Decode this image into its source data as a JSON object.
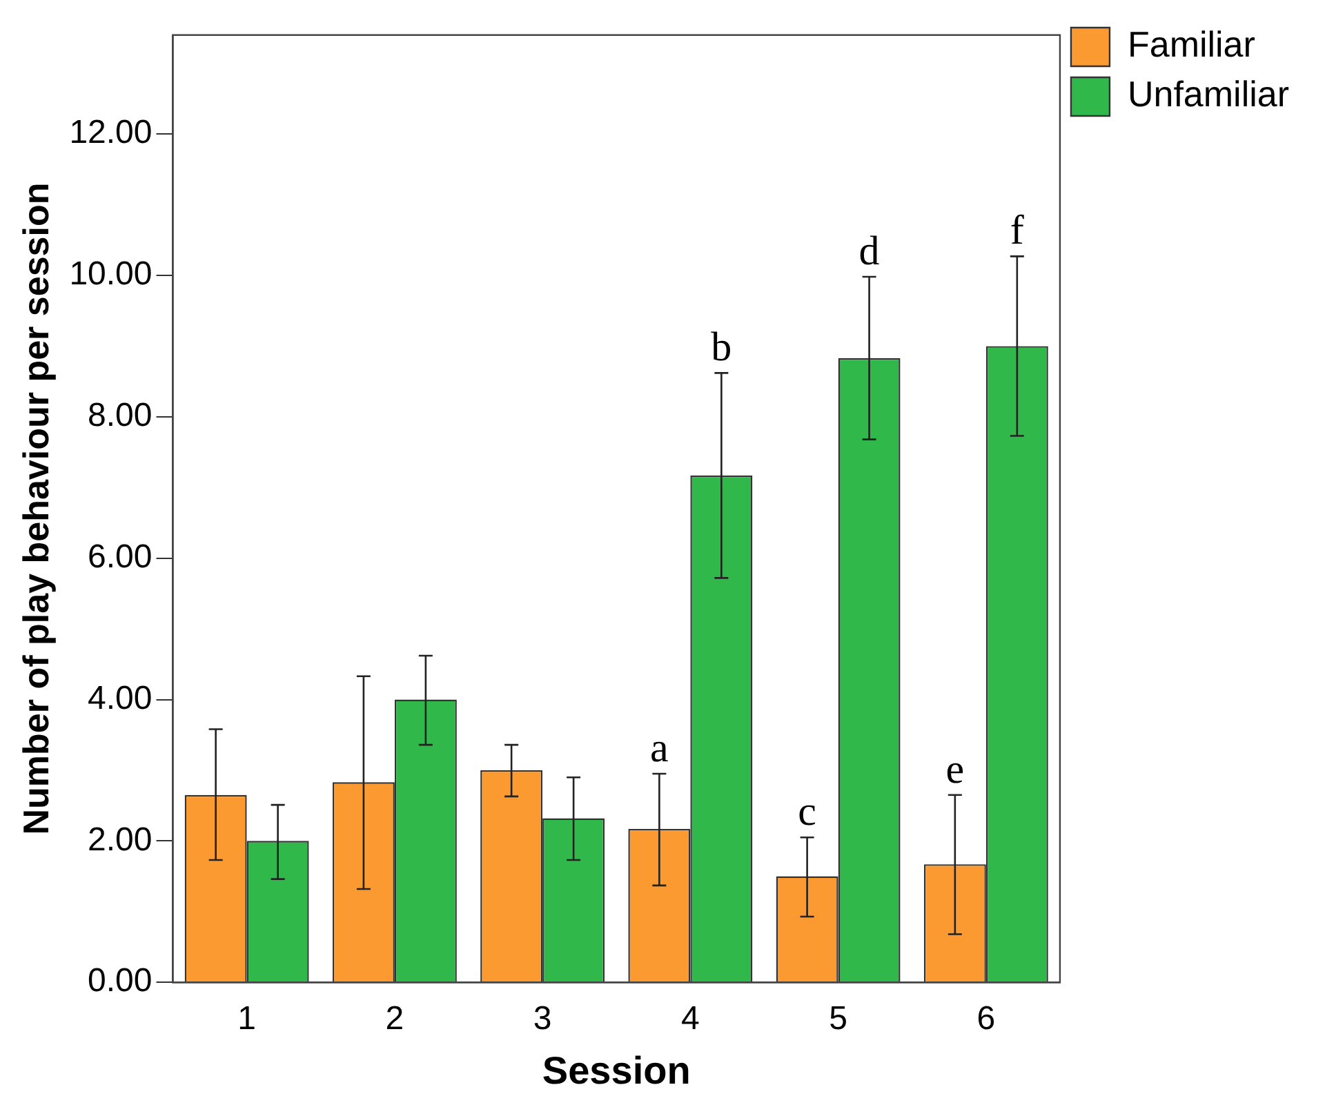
{
  "chart_data": {
    "type": "bar",
    "xlabel": "Session",
    "ylabel": "Number of play behaviour per session",
    "categories": [
      "1",
      "2",
      "3",
      "4",
      "5",
      "6"
    ],
    "series": [
      {
        "name": "Familiar",
        "color": "#fc9a32",
        "values": [
          2.65,
          2.83,
          3.0,
          2.17,
          1.5,
          1.67
        ],
        "errors": [
          [
            1.73,
            3.58
          ],
          [
            1.32,
            4.33
          ],
          [
            2.63,
            3.36
          ],
          [
            1.37,
            2.95
          ],
          [
            0.93,
            2.05
          ],
          [
            0.68,
            2.65
          ]
        ]
      },
      {
        "name": "Unfamiliar",
        "color": "#31b84a",
        "values": [
          2.0,
          4.0,
          2.32,
          7.17,
          8.83,
          9.0
        ],
        "errors": [
          [
            1.46,
            2.51
          ],
          [
            3.36,
            4.62
          ],
          [
            1.73,
            2.9
          ],
          [
            5.72,
            8.62
          ],
          [
            7.68,
            9.98
          ],
          [
            7.73,
            10.27
          ]
        ]
      }
    ],
    "ylim": [
      0,
      13.4
    ],
    "yticks": [
      {
        "value": 0,
        "label": "0.00"
      },
      {
        "value": 2,
        "label": "2.00"
      },
      {
        "value": 4,
        "label": "4.00"
      },
      {
        "value": 6,
        "label": "6.00"
      },
      {
        "value": 8,
        "label": "8.00"
      },
      {
        "value": 10,
        "label": "10.00"
      },
      {
        "value": 12,
        "label": "12.00"
      }
    ],
    "grid": false,
    "legend": "top right",
    "annotations": [
      {
        "text": "a",
        "x": "4",
        "y": 2.17
      },
      {
        "text": "b",
        "x": "4",
        "y": 7.17
      },
      {
        "text": "c",
        "x": "5",
        "y": 1.5
      },
      {
        "text": "d",
        "x": "5",
        "y": 8.83
      },
      {
        "text": "e",
        "x": "6",
        "y": 1.67
      },
      {
        "text": "f",
        "x": "6",
        "y": 9.0
      }
    ]
  }
}
